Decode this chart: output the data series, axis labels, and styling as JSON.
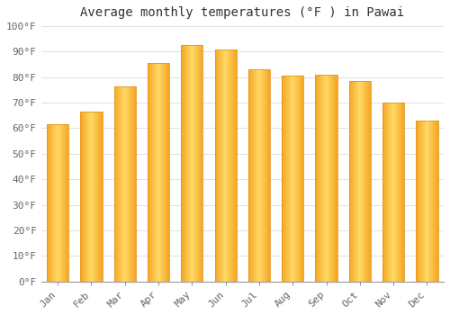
{
  "title": "Average monthly temperatures (°F ) in Pawai",
  "months": [
    "Jan",
    "Feb",
    "Mar",
    "Apr",
    "May",
    "Jun",
    "Jul",
    "Aug",
    "Sep",
    "Oct",
    "Nov",
    "Dec"
  ],
  "values": [
    61.5,
    66.5,
    76.5,
    85.5,
    92.5,
    91.0,
    83.0,
    80.5,
    81.0,
    78.5,
    70.0,
    63.0
  ],
  "bar_color_left": "#F5A623",
  "bar_color_right": "#FFD966",
  "bar_color_top": "#FFE082",
  "bar_edge_color": "#E69520",
  "background_color": "#FFFFFF",
  "plot_bg_color": "#FFFFFF",
  "ylim": [
    0,
    100
  ],
  "ytick_step": 10,
  "title_fontsize": 10,
  "tick_fontsize": 8,
  "grid_color": "#E0E0E0",
  "bar_width": 0.65
}
